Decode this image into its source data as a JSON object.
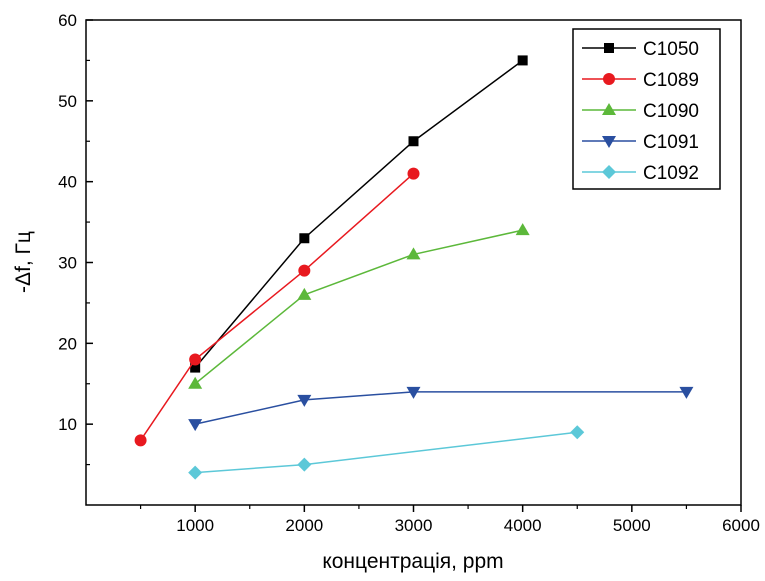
{
  "chart_data": {
    "type": "line",
    "title": "",
    "xlabel": "концентрація, ppm",
    "ylabel": "-Δf, Гц",
    "xlim": [
      0,
      6000
    ],
    "ylim": [
      0,
      60
    ],
    "xticks": [
      1000,
      2000,
      3000,
      4000,
      5000,
      6000
    ],
    "yticks": [
      10,
      20,
      30,
      40,
      50,
      60
    ],
    "grid": false,
    "legend_position": "top-right",
    "series": [
      {
        "name": "C1050",
        "color": "#000000",
        "marker": "square",
        "x": [
          1000,
          2000,
          3000,
          4000
        ],
        "y": [
          17,
          33,
          45,
          55
        ]
      },
      {
        "name": "C1089",
        "color": "#e8191f",
        "marker": "circle",
        "x": [
          500,
          1000,
          2000,
          3000
        ],
        "y": [
          8,
          18,
          29,
          41
        ]
      },
      {
        "name": "C1090",
        "color": "#5cb83a",
        "marker": "triangle-up",
        "x": [
          1000,
          2000,
          3000,
          4000
        ],
        "y": [
          15,
          26,
          31,
          34
        ]
      },
      {
        "name": "C1091",
        "color": "#2a4fa0",
        "marker": "triangle-down",
        "x": [
          1000,
          2000,
          3000,
          5500
        ],
        "y": [
          10,
          13,
          14,
          14
        ]
      },
      {
        "name": "C1092",
        "color": "#5cc8d8",
        "marker": "diamond",
        "x": [
          1000,
          2000,
          4500
        ],
        "y": [
          4,
          5,
          9
        ]
      }
    ]
  }
}
